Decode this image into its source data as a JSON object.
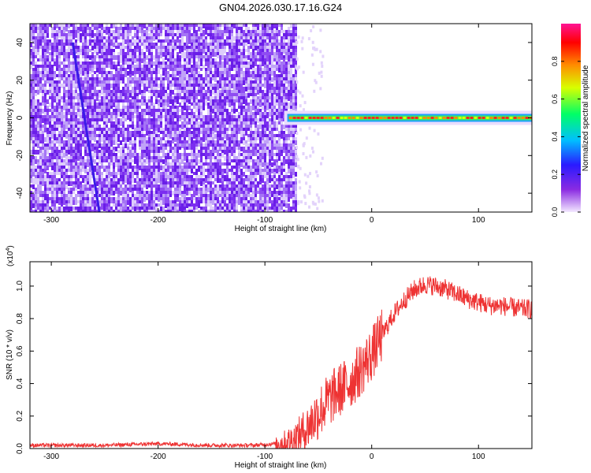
{
  "title": "GN04.2026.030.17.16.G24",
  "chart_data": [
    {
      "type": "heatmap",
      "xlabel": "Height of straight line (km)",
      "ylabel": "Frequency (Hz)",
      "xlim": [
        -320,
        150
      ],
      "ylim": [
        -50,
        50
      ],
      "xticks": [
        -300,
        -200,
        -100,
        0,
        100
      ],
      "yticks": [
        -40,
        -20,
        0,
        20,
        40
      ],
      "colorbar": {
        "label": "Normalized spectral amplitude",
        "range": [
          0,
          1
        ],
        "ticks": [
          "0.0",
          "0.2",
          "0.4",
          "0.6",
          "0.8"
        ],
        "colors": [
          "#f3e8ff",
          "#8a2be2",
          "#2a1aff",
          "#00bfff",
          "#00ff66",
          "#d8ff00",
          "#ff8c00",
          "#ff0000",
          "#ff1493"
        ]
      },
      "features": {
        "noise_region_x": [
          -320,
          -72
        ],
        "carrier_signal": {
          "x_start": -82,
          "x_end": 150,
          "frequency_hz": 0
        },
        "diagonal_trace": {
          "start": [
            -280,
            40
          ],
          "end": [
            -255,
            -50
          ]
        }
      }
    },
    {
      "type": "line",
      "xlabel": "Height of straight line (km)",
      "ylabel": "SNR (10 * v/v)",
      "scale_label": "(x10",
      "scale_exp": "4",
      "scale_close": ")",
      "xlim": [
        -320,
        150
      ],
      "ylim": [
        0,
        1.15
      ],
      "xticks": [
        -300,
        -200,
        -100,
        0,
        100
      ],
      "yticks": [
        "0.0",
        "0.2",
        "0.4",
        "0.6",
        "0.8",
        "1.0"
      ],
      "line_color": "#ee3333",
      "series": [
        {
          "x": [
            -320,
            -300,
            -250,
            -200,
            -150,
            -110,
            -90,
            -80,
            -70,
            -60,
            -50,
            -40,
            -30,
            -20,
            -10,
            0,
            10,
            20,
            30,
            40,
            50,
            60,
            70,
            80,
            90,
            100,
            110,
            120,
            130,
            140,
            150
          ],
          "values": [
            0.02,
            0.02,
            0.02,
            0.03,
            0.02,
            0.02,
            0.03,
            0.04,
            0.07,
            0.13,
            0.22,
            0.3,
            0.36,
            0.41,
            0.49,
            0.58,
            0.7,
            0.82,
            0.91,
            0.98,
            1.01,
            1.0,
            0.98,
            0.95,
            0.92,
            0.9,
            0.88,
            0.88,
            0.87,
            0.86,
            0.86
          ]
        }
      ]
    }
  ]
}
